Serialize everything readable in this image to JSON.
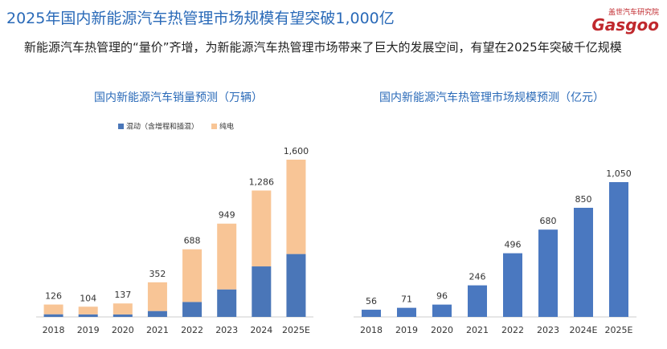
{
  "title": "2025年国内新能源汽车热管理市场规模有望突破1,000亿",
  "subtitle": "新能源汽车热管理的“量价”齐增，为新能源汽车热管理市场带来了巨大的发展空间，有望在2025年突破千亿规模",
  "logo": {
    "name": "盖世汽车研究院",
    "brand": "Gasgoo"
  },
  "chart_data": [
    {
      "type": "bar",
      "stacked": true,
      "title": "国内新能源汽车销量预测（万辆）",
      "categories": [
        "2018",
        "2019",
        "2020",
        "2021",
        "2022",
        "2023",
        "2024",
        "2025E"
      ],
      "series": [
        {
          "name": "混动（含增程和插混）",
          "color": "#4a76b8",
          "values": [
            27,
            26,
            25,
            60,
            152,
            280,
            514,
            640
          ]
        },
        {
          "name": "纯电",
          "color": "#f8c596",
          "values": [
            99,
            78,
            112,
            292,
            536,
            669,
            772,
            960
          ]
        }
      ],
      "totals": [
        126,
        104,
        137,
        352,
        688,
        949,
        1286,
        1600
      ],
      "total_labels": [
        "126",
        "104",
        "137",
        "352",
        "688",
        "949",
        "1,286",
        "1,600"
      ]
    },
    {
      "type": "bar",
      "title": "国内新能源汽车热管理市场规模预测（亿元）",
      "categories": [
        "2018",
        "2019",
        "2020",
        "2021",
        "2022",
        "2023",
        "2024E",
        "2025E"
      ],
      "values": [
        56,
        71,
        96,
        246,
        496,
        680,
        850,
        1050
      ],
      "value_labels": [
        "56",
        "71",
        "96",
        "246",
        "496",
        "680",
        "850",
        "1,050"
      ],
      "color": "#4a78c0"
    }
  ]
}
